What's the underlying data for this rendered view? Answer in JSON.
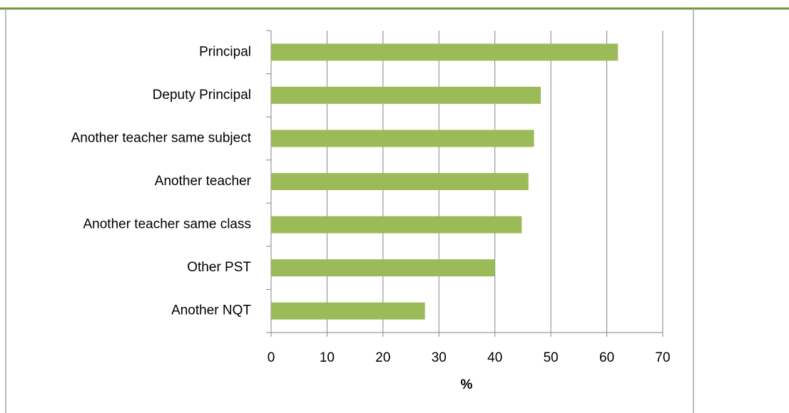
{
  "chart_data": {
    "type": "bar",
    "orientation": "horizontal",
    "categories": [
      "Principal",
      "Deputy Principal",
      "Another teacher same subject",
      "Another teacher",
      "Another teacher same class",
      "Other PST",
      "Another NQT"
    ],
    "values": [
      62,
      48.2,
      47,
      46,
      44.8,
      40,
      27.5
    ],
    "color": "#9bbb59",
    "xlabel": "%",
    "xlim": [
      0,
      70
    ],
    "xticks": [
      0,
      10,
      20,
      30,
      40,
      50,
      60,
      70
    ],
    "grid": true
  }
}
